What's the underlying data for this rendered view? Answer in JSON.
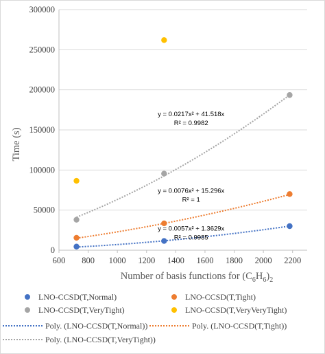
{
  "chart_data": {
    "type": "scatter",
    "xlabel": "Number of basis functions for (C6H6)2",
    "xlabel_parts": {
      "text": "Number of basis functions for (C",
      "sub1": "6",
      "mid": "H",
      "sub2": "6",
      "close": ")",
      "sub3": "2"
    },
    "ylabel": "Time (s)",
    "xlim": [
      600,
      2300
    ],
    "ylim": [
      0,
      300000
    ],
    "xticks": [
      600,
      800,
      1000,
      1200,
      1400,
      1600,
      1800,
      2000,
      2200
    ],
    "yticks": [
      0,
      50000,
      100000,
      150000,
      200000,
      250000,
      300000
    ],
    "grid": "horizontal",
    "legend_position": "bottom",
    "series": [
      {
        "name": "LNO-CCSD(T,Normal)",
        "color": "#4472c4",
        "x": [
          720,
          1320,
          2180
        ],
        "y": [
          4500,
          11500,
          30000
        ]
      },
      {
        "name": "LNO-CCSD(T,Tight)",
        "color": "#ed7d31",
        "x": [
          720,
          1320,
          2180
        ],
        "y": [
          15500,
          33500,
          70000
        ]
      },
      {
        "name": "LNO-CCSD(T,VeryTight)",
        "color": "#a5a5a5",
        "x": [
          720,
          1320,
          2180
        ],
        "y": [
          38000,
          95500,
          193500
        ]
      },
      {
        "name": "LNO-CCSD(T,VeryVeryTight)",
        "color": "#ffc000",
        "x": [
          720,
          1320
        ],
        "y": [
          86500,
          262000
        ]
      }
    ],
    "trendlines": [
      {
        "name": "Poly. (LNO-CCSD(T,Normal))",
        "color": "#4472c4",
        "a": 0.0057,
        "b": 1.3629,
        "x_range": [
          720,
          2180
        ],
        "equation": "y = 0.0057x² + 1.3629x",
        "r2": "R² = 0.9985"
      },
      {
        "name": "Poly. (LNO-CCSD(T,Tight))",
        "color": "#ed7d31",
        "a": 0.0076,
        "b": 15.296,
        "x_range": [
          720,
          2180
        ],
        "equation": "y = 0.0076x² + 15.296x",
        "r2": "R² = 1"
      },
      {
        "name": "Poly. (LNO-CCSD(T,VeryTight))",
        "color": "#a5a5a5",
        "a": 0.0217,
        "b": 41.518,
        "x_range": [
          720,
          2180
        ],
        "equation": "y = 0.0217x² + 41.518x",
        "r2": "R² = 0.9982"
      }
    ]
  }
}
